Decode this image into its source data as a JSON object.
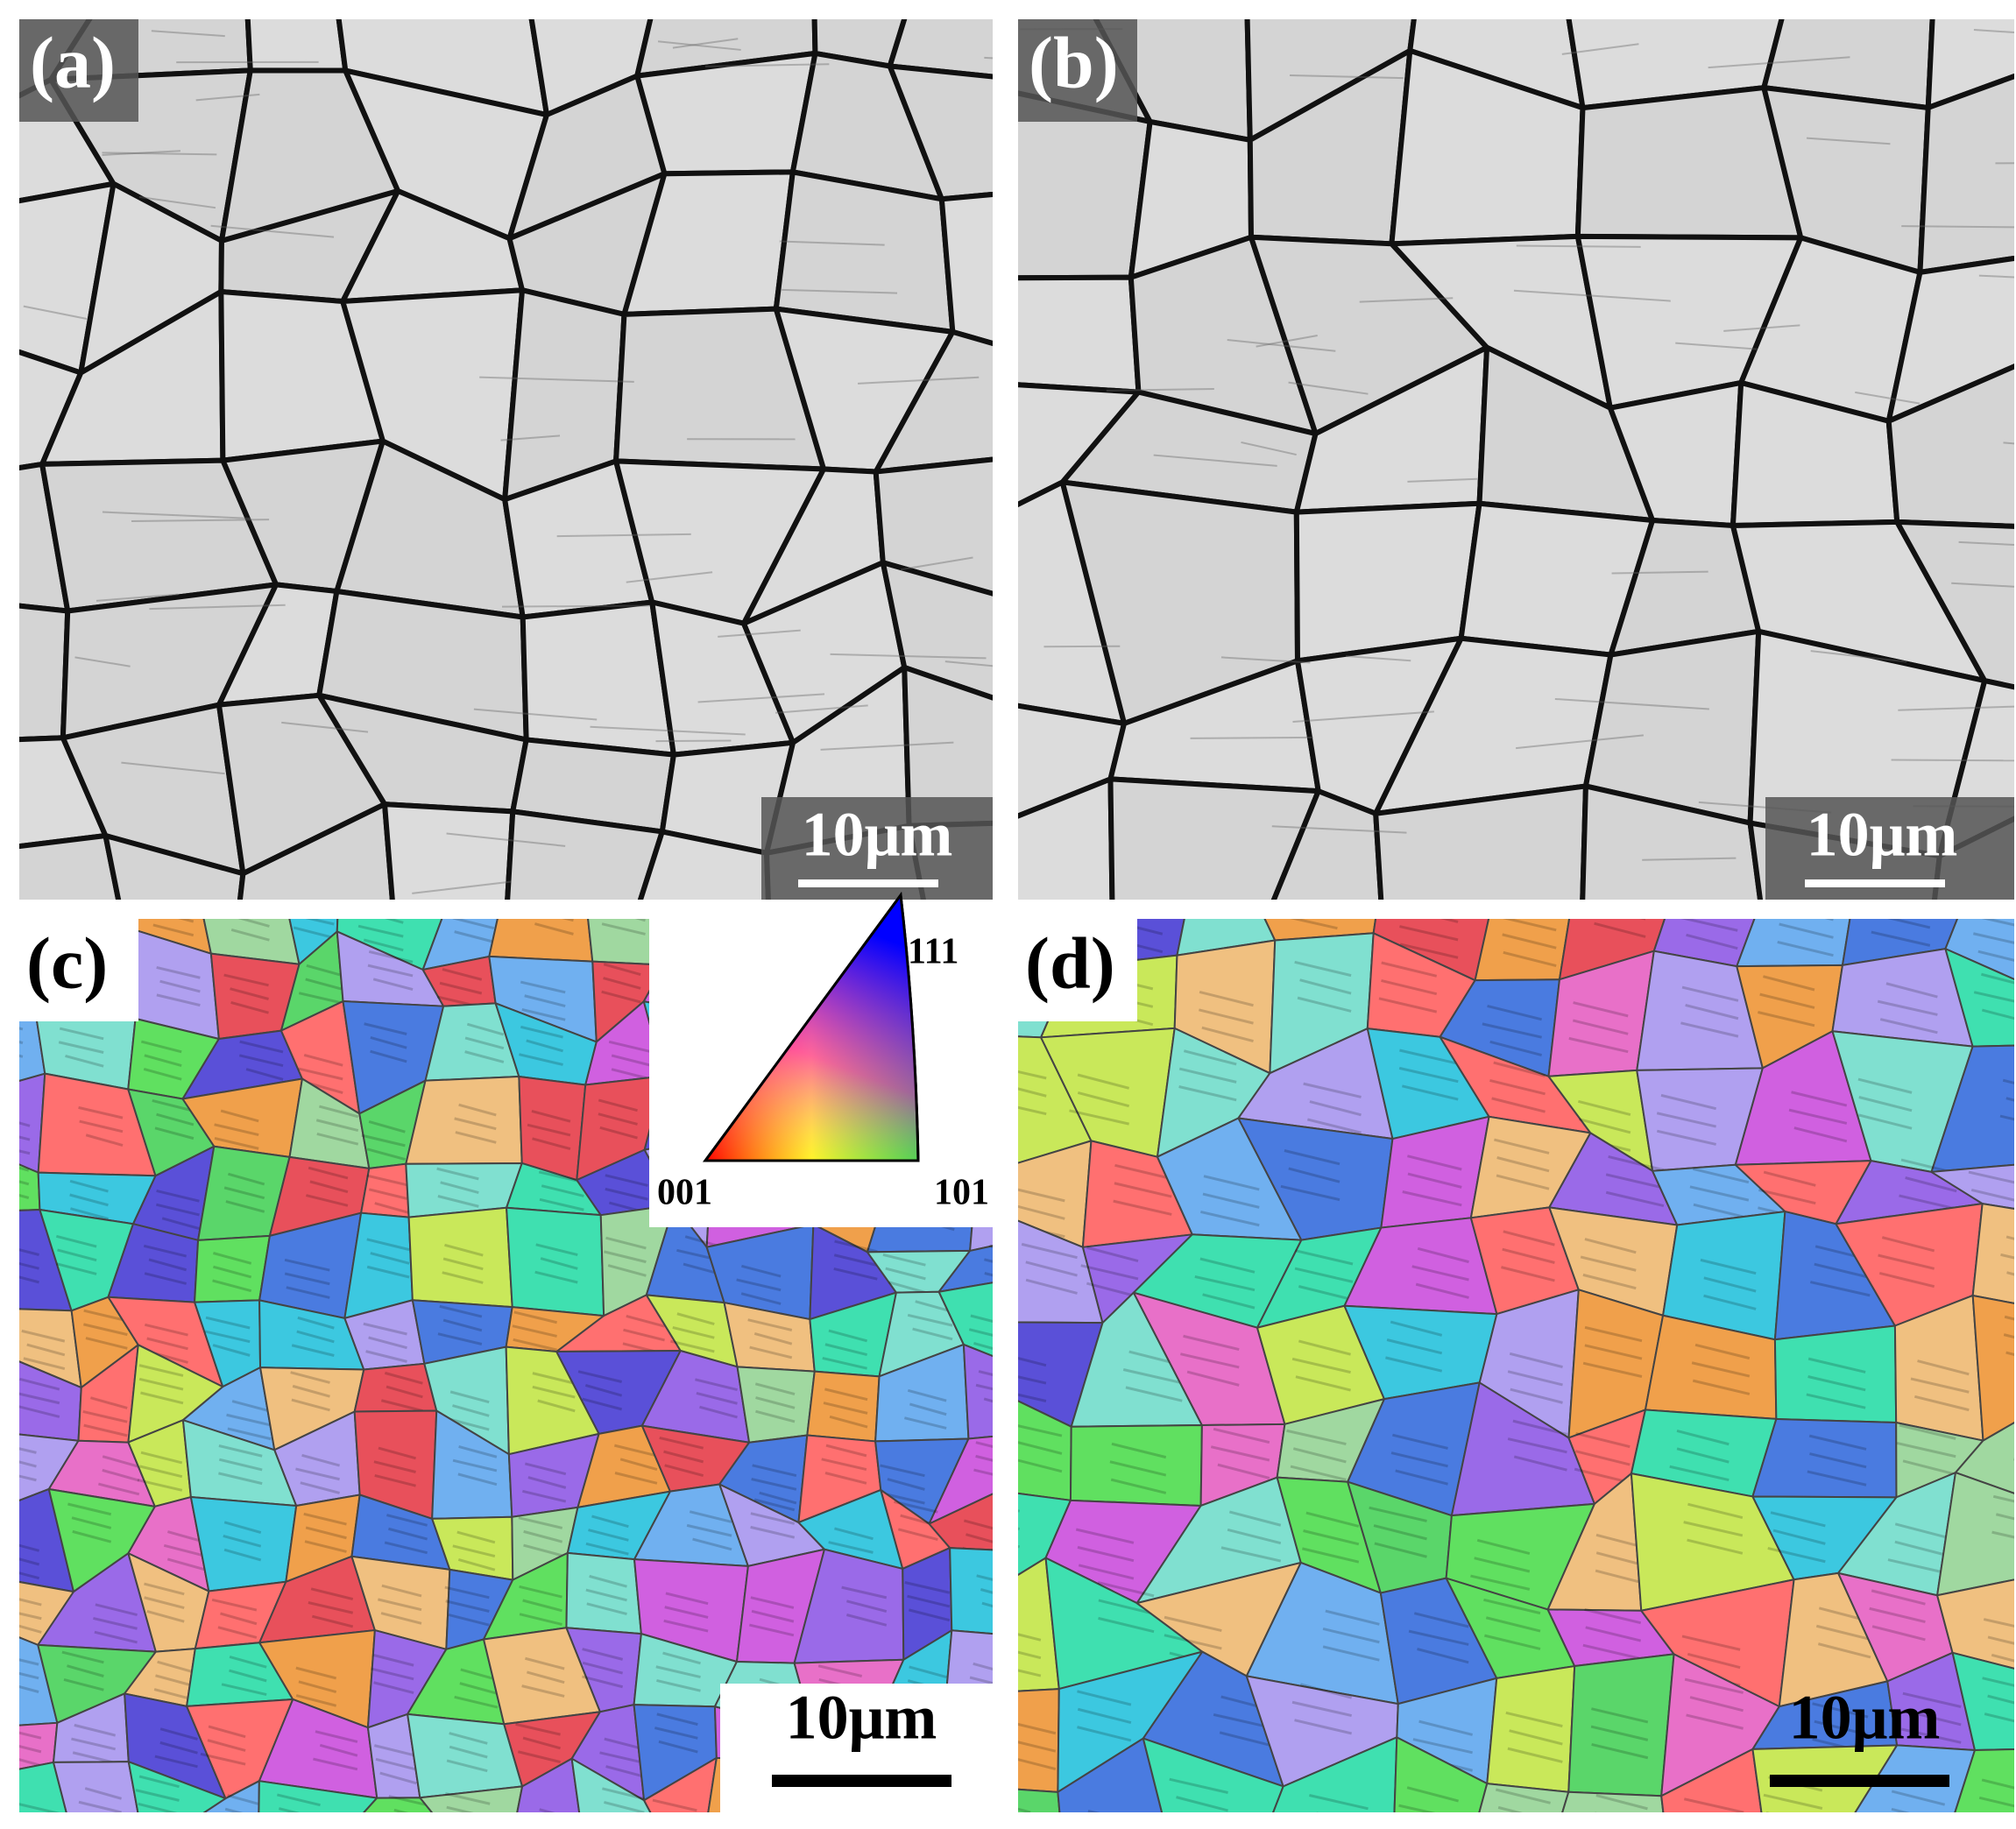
{
  "panels": [
    {
      "label": "(a)",
      "scale_bar": "10μm"
    },
    {
      "label": "(b)",
      "scale_bar": "10μm"
    },
    {
      "label": "(c)",
      "scale_bar": "10μm"
    },
    {
      "label": "(d)",
      "scale_bar": "10μm"
    }
  ],
  "ipf_legend": {
    "top": "111",
    "bottom_left": "001",
    "bottom_right": "101"
  }
}
